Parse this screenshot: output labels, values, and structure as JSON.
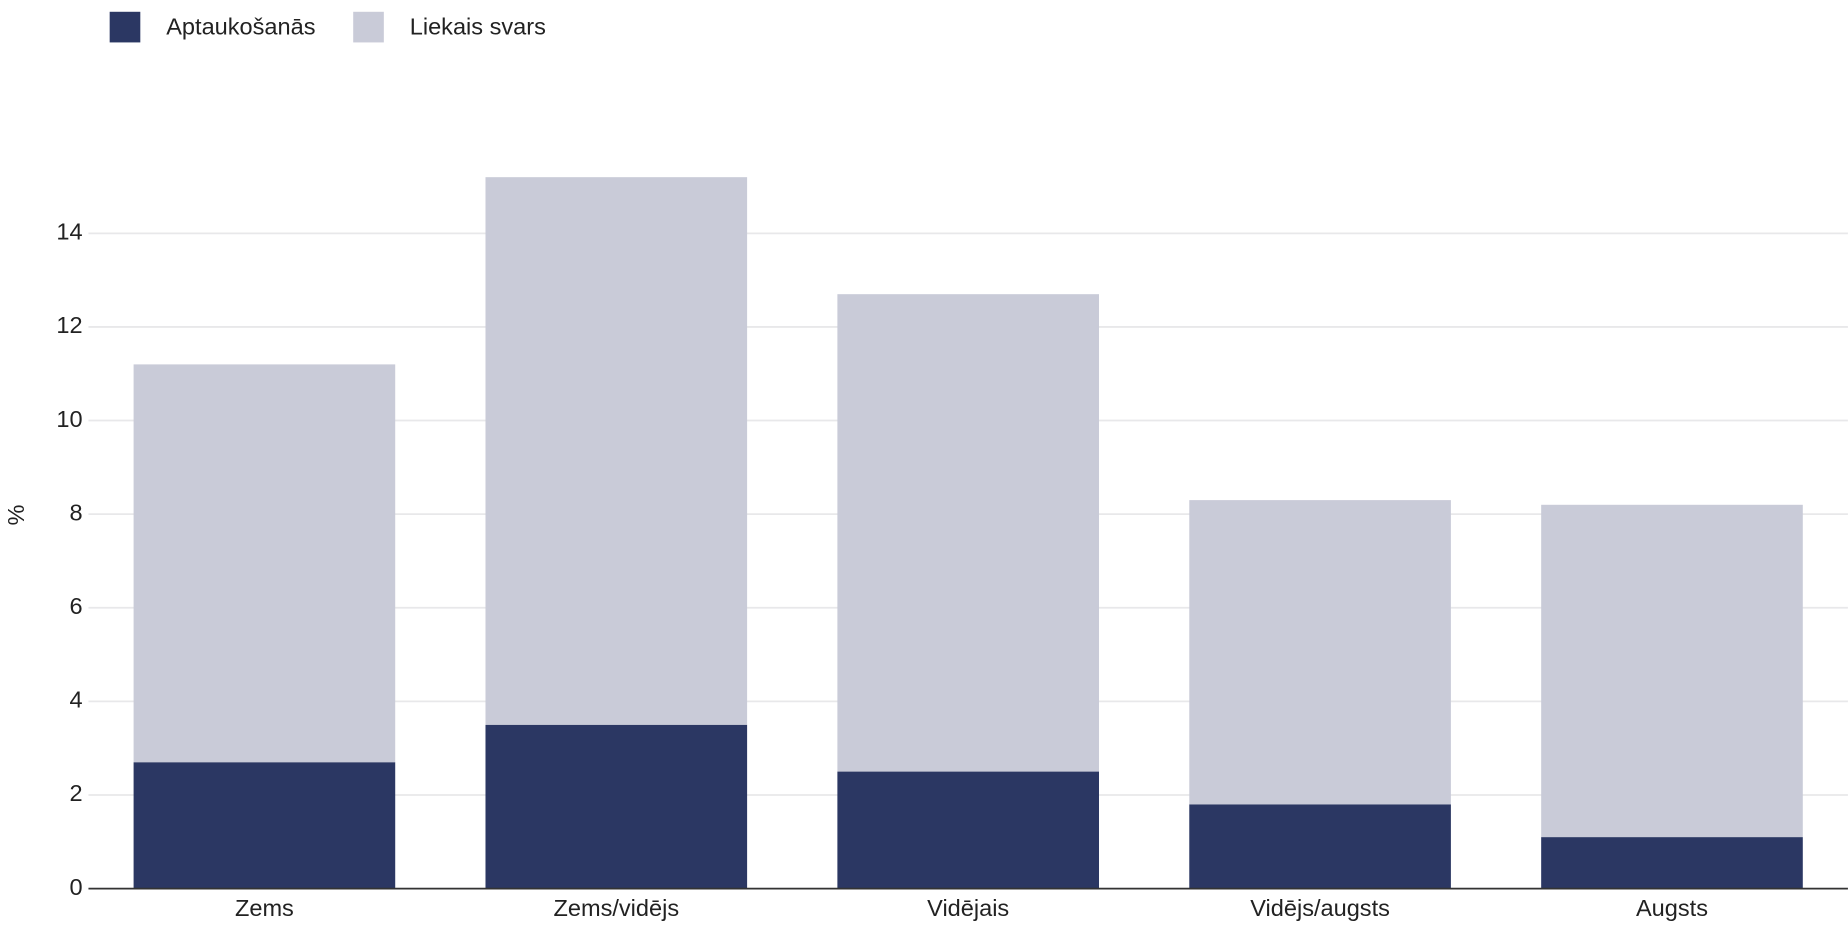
{
  "chart_data": {
    "type": "stacked_bar",
    "y_label": "%",
    "categories": [
      "Zems",
      "Zems/vidējs",
      "Vidējais",
      "Vidējs/augsts",
      "Augsts"
    ],
    "series": [
      {
        "name": "Aptaukošanās",
        "color": "#2b3763",
        "values": [
          2.7,
          3.5,
          2.5,
          1.8,
          1.1
        ]
      },
      {
        "name": "Liekais svars",
        "color": "#c9cbd8",
        "values": [
          8.5,
          11.7,
          10.2,
          6.5,
          7.1
        ]
      }
    ],
    "ylim": [
      0,
      16
    ],
    "yticks": [
      0,
      2,
      4,
      6,
      8,
      10,
      12,
      14
    ],
    "grid": true,
    "legend": "top-left"
  }
}
